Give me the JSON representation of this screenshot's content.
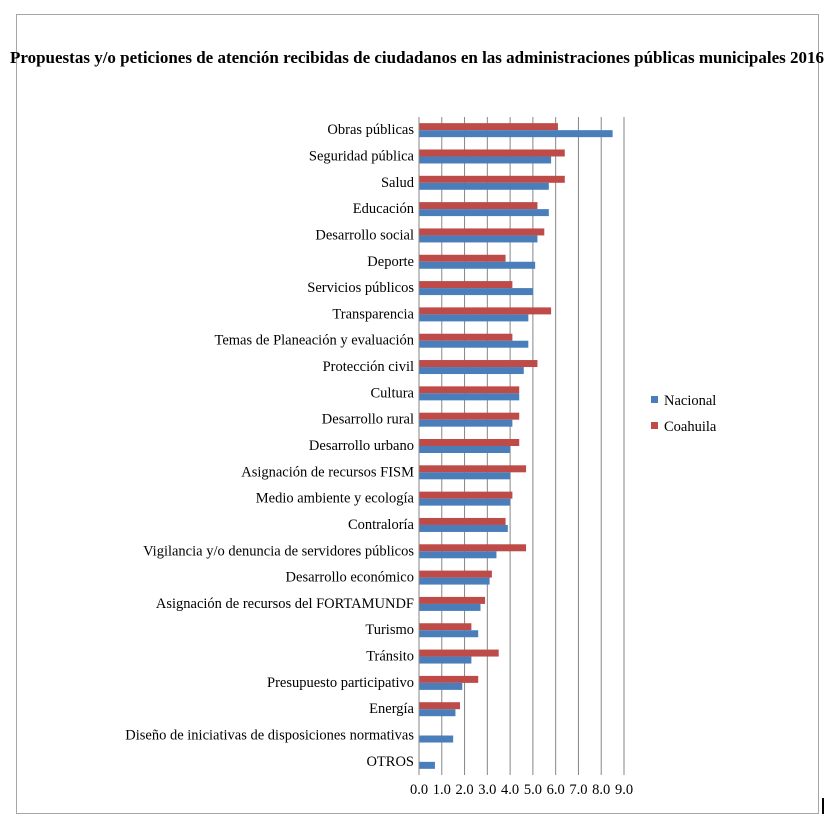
{
  "chart_data": {
    "type": "bar",
    "orientation": "horizontal",
    "title": "Propuestas y/o peticiones de atención recibidas de ciudadanos en las administraciones públicas municipales 2016",
    "xlabel": "",
    "ylabel": "",
    "xlim": [
      0,
      9
    ],
    "grid": true,
    "legend_position": "right",
    "ticks": [
      "0.0",
      "1.0",
      "2.0",
      "3.0",
      "4.0",
      "5.0",
      "6.0",
      "7.0",
      "8.0",
      "9.0"
    ],
    "categories": [
      "Obras públicas",
      "Seguridad pública",
      "Salud",
      "Educación",
      "Desarrollo social",
      "Deporte",
      "Servicios públicos",
      "Transparencia",
      "Temas de Planeación y evaluación",
      "Protección civil",
      "Cultura",
      "Desarrollo rural",
      "Desarrollo urbano",
      "Asignación de recursos FISM",
      "Medio ambiente y ecología",
      "Contraloría",
      "Vigilancia y/o denuncia de servidores públicos",
      "Desarrollo económico",
      "Asignación de recursos del FORTAMUNDF",
      "Turismo",
      "Tránsito",
      "Presupuesto participativo",
      "Energía",
      "Diseño de iniciativas de disposiciones normativas",
      "OTROS"
    ],
    "series": [
      {
        "name": "Nacional",
        "color": "#4a7ebb",
        "values": [
          8.5,
          5.8,
          5.7,
          5.7,
          5.2,
          5.1,
          5.0,
          4.8,
          4.8,
          4.6,
          4.4,
          4.1,
          4.0,
          4.0,
          4.0,
          3.9,
          3.4,
          3.1,
          2.7,
          2.6,
          2.3,
          1.9,
          1.6,
          1.5,
          0.7
        ]
      },
      {
        "name": "Coahuila",
        "color": "#be4b48",
        "values": [
          6.1,
          6.4,
          6.4,
          5.2,
          5.5,
          3.8,
          4.1,
          5.8,
          4.1,
          5.2,
          4.4,
          4.4,
          4.4,
          4.7,
          4.1,
          3.8,
          4.7,
          3.2,
          2.9,
          2.3,
          3.5,
          2.6,
          1.8,
          0,
          0
        ]
      }
    ]
  }
}
